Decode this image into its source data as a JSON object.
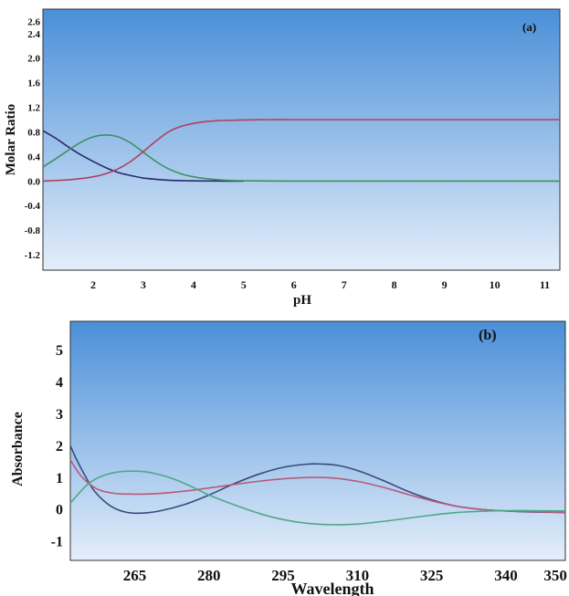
{
  "chart_data": [
    {
      "type": "line",
      "panel_label": "(a)",
      "xlabel": "pH",
      "ylabel": "Molar Ratio",
      "xlim": [
        1,
        11.3
      ],
      "ylim": [
        -1.45,
        2.8
      ],
      "x_ticks": [
        2,
        3,
        4,
        5,
        6,
        7,
        8,
        9,
        10,
        11
      ],
      "x_tick_labels": [
        "2",
        "3",
        "4",
        "5",
        "6",
        "7",
        "8",
        "9",
        "10",
        "11"
      ],
      "y_ticks": [
        2.6,
        2.4,
        2.0,
        1.6,
        1.2,
        0.8,
        0.4,
        0.0,
        -0.4,
        -0.8,
        -1.2
      ],
      "y_tick_labels": [
        "2.6",
        "2.4",
        "2.0",
        "1.6",
        "1.2",
        "0.8",
        "0.4",
        "0.0",
        "-0.4",
        "-0.8",
        "-1.2"
      ],
      "grid": false,
      "background": [
        "#4a8fd8",
        "#e4eefa"
      ],
      "series": [
        {
          "color": "#2a2a6e",
          "x": [
            1.0,
            1.25,
            1.5,
            1.75,
            2.0,
            2.25,
            2.5,
            2.75,
            3.0,
            3.25,
            3.5,
            3.75,
            4.0,
            4.5,
            5.0
          ],
          "y": [
            0.82,
            0.7,
            0.56,
            0.43,
            0.32,
            0.22,
            0.14,
            0.09,
            0.05,
            0.03,
            0.015,
            0.008,
            0.004,
            0.001,
            0.0
          ]
        },
        {
          "color": "#3c9068",
          "x": [
            1.0,
            1.25,
            1.5,
            1.75,
            2.0,
            2.25,
            2.5,
            2.75,
            3.0,
            3.25,
            3.5,
            3.75,
            4.0,
            4.25,
            4.5,
            4.75,
            5.0,
            5.5,
            6.0,
            7.0,
            8.0,
            9.0,
            10.0,
            11.3
          ],
          "y": [
            0.23,
            0.36,
            0.5,
            0.63,
            0.72,
            0.75,
            0.72,
            0.62,
            0.47,
            0.32,
            0.2,
            0.12,
            0.07,
            0.04,
            0.02,
            0.01,
            0.005,
            0.002,
            0.0,
            0.0,
            0.0,
            0.0,
            0.0,
            0.0
          ]
        },
        {
          "color": "#b04060",
          "x": [
            1.0,
            1.25,
            1.5,
            1.75,
            2.0,
            2.25,
            2.5,
            2.75,
            3.0,
            3.25,
            3.5,
            3.75,
            4.0,
            4.25,
            4.5,
            4.75,
            5.0,
            5.5,
            6.0,
            7.0,
            8.0,
            9.0,
            10.0,
            11.3
          ],
          "y": [
            0.0,
            0.01,
            0.02,
            0.04,
            0.07,
            0.12,
            0.2,
            0.32,
            0.48,
            0.65,
            0.8,
            0.89,
            0.94,
            0.97,
            0.985,
            0.99,
            0.995,
            1.0,
            1.0,
            1.0,
            1.0,
            1.0,
            1.0,
            1.0
          ]
        }
      ]
    },
    {
      "type": "line",
      "panel_label": "(b)",
      "xlabel": "Wavelength",
      "ylabel": "Absorbance",
      "xlim": [
        252,
        352
      ],
      "ylim": [
        -1.6,
        5.9
      ],
      "x_ticks": [
        265,
        280,
        295,
        310,
        325,
        340,
        350
      ],
      "x_tick_labels": [
        "265",
        "280",
        "295",
        "310",
        "325",
        "340",
        "350"
      ],
      "y_ticks": [
        5,
        4,
        3,
        2,
        1,
        0,
        -1
      ],
      "y_tick_labels": [
        "5",
        "4",
        "3",
        "2",
        "1",
        "0",
        "-1"
      ],
      "grid": false,
      "background": [
        "#4a8fd8",
        "#e4eefa"
      ],
      "series": [
        {
          "color": "#3a4a7e",
          "x": [
            252,
            253,
            255,
            257,
            260,
            263,
            266,
            270,
            275,
            280,
            285,
            290,
            295,
            300,
            303,
            306,
            310,
            315,
            320,
            325,
            330,
            335,
            340,
            345,
            352
          ],
          "y": [
            2.0,
            1.65,
            1.05,
            0.55,
            0.12,
            -0.08,
            -0.12,
            -0.05,
            0.15,
            0.45,
            0.8,
            1.1,
            1.32,
            1.42,
            1.42,
            1.38,
            1.22,
            0.92,
            0.58,
            0.3,
            0.1,
            0.0,
            -0.05,
            -0.08,
            -0.1
          ]
        },
        {
          "color": "#b85a7a",
          "x": [
            252,
            254,
            256,
            258,
            261,
            264,
            267,
            270,
            275,
            280,
            285,
            290,
            295,
            300,
            303,
            306,
            310,
            315,
            320,
            325,
            330,
            335,
            340,
            345,
            352
          ],
          "y": [
            1.55,
            1.08,
            0.78,
            0.6,
            0.5,
            0.48,
            0.48,
            0.5,
            0.57,
            0.67,
            0.78,
            0.88,
            0.96,
            1.0,
            1.0,
            0.97,
            0.88,
            0.7,
            0.48,
            0.27,
            0.1,
            0.0,
            -0.05,
            -0.07,
            -0.1
          ]
        },
        {
          "color": "#4fa886",
          "x": [
            252,
            254,
            256,
            259,
            262,
            265,
            268,
            272,
            276,
            280,
            285,
            290,
            295,
            300,
            305,
            310,
            315,
            320,
            325,
            330,
            335,
            340,
            345,
            352
          ],
          "y": [
            0.2,
            0.55,
            0.85,
            1.08,
            1.18,
            1.2,
            1.16,
            1.0,
            0.75,
            0.45,
            0.15,
            -0.12,
            -0.32,
            -0.44,
            -0.48,
            -0.46,
            -0.38,
            -0.28,
            -0.18,
            -0.1,
            -0.06,
            -0.04,
            -0.04,
            -0.05
          ]
        }
      ]
    }
  ]
}
